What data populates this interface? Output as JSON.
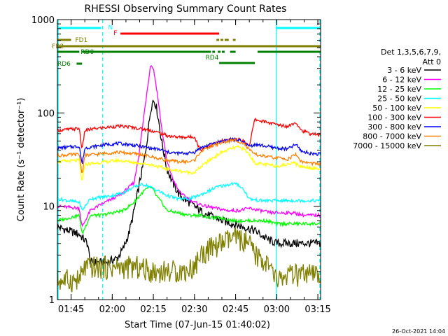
{
  "chart_data": {
    "type": "line",
    "title": "RHESSI Observing Summary Count Rates",
    "xlabel": "Start Time (07-Jun-15 01:40:02)",
    "ylabel": "Count Rate (s⁻¹ detector⁻¹)",
    "y_scale": "log",
    "ylim": [
      1,
      1000
    ],
    "xlim_minutes": [
      0,
      96
    ],
    "x_ticks": [
      {
        "minute": 5,
        "label": "01:45"
      },
      {
        "minute": 20,
        "label": "02:00"
      },
      {
        "minute": 35,
        "label": "02:15"
      },
      {
        "minute": 50,
        "label": "02:30"
      },
      {
        "minute": 65,
        "label": "02:45"
      },
      {
        "minute": 80,
        "label": "03:00"
      },
      {
        "minute": 95,
        "label": "03:15"
      }
    ],
    "y_ticks": [
      {
        "value": 1,
        "label": "1"
      },
      {
        "value": 10,
        "label": "10"
      },
      {
        "value": 100,
        "label": "100"
      },
      {
        "value": 1000,
        "label": "1000"
      }
    ],
    "legend_header": [
      "Det 1,3,5,6,7,9,",
      "Att 0"
    ],
    "legend_position": "right",
    "footer_timestamp": "26-Oct-2021 14:04",
    "series": [
      {
        "name": "3 - 6 keV",
        "color": "#000000",
        "points": [
          [
            0,
            6
          ],
          [
            8,
            5
          ],
          [
            11,
            4
          ],
          [
            12,
            2.5
          ],
          [
            18,
            2.5
          ],
          [
            22,
            2.8
          ],
          [
            24,
            3.5
          ],
          [
            26,
            5
          ],
          [
            28,
            9
          ],
          [
            30,
            18
          ],
          [
            32,
            35
          ],
          [
            33,
            60
          ],
          [
            34,
            110
          ],
          [
            35,
            140
          ],
          [
            36,
            120
          ],
          [
            37,
            80
          ],
          [
            38,
            50
          ],
          [
            39,
            35
          ],
          [
            40,
            25
          ],
          [
            42,
            18
          ],
          [
            44,
            14
          ],
          [
            46,
            12
          ],
          [
            48,
            11
          ],
          [
            50,
            10
          ],
          [
            52,
            9
          ],
          [
            55,
            8
          ],
          [
            58,
            7.5
          ],
          [
            60,
            7
          ],
          [
            64,
            6.5
          ],
          [
            68,
            6
          ],
          [
            72,
            5.5
          ],
          [
            76,
            4.5
          ],
          [
            80,
            4
          ],
          [
            85,
            4
          ],
          [
            90,
            4
          ],
          [
            96,
            4
          ]
        ]
      },
      {
        "name": "6 - 12 keV",
        "color": "#ff00ff",
        "points": [
          [
            0,
            10
          ],
          [
            8,
            9.5
          ],
          [
            9,
            6
          ],
          [
            12,
            9
          ],
          [
            16,
            10.5
          ],
          [
            20,
            12
          ],
          [
            24,
            14
          ],
          [
            28,
            18
          ],
          [
            30,
            40
          ],
          [
            32,
            120
          ],
          [
            33,
            200
          ],
          [
            34,
            330
          ],
          [
            35,
            300
          ],
          [
            36,
            200
          ],
          [
            37,
            120
          ],
          [
            38,
            70
          ],
          [
            39,
            45
          ],
          [
            40,
            30
          ],
          [
            42,
            20
          ],
          [
            44,
            15
          ],
          [
            46,
            13
          ],
          [
            48,
            12
          ],
          [
            50,
            11
          ],
          [
            54,
            10
          ],
          [
            58,
            9.5
          ],
          [
            62,
            9
          ],
          [
            66,
            9
          ],
          [
            70,
            9.5
          ],
          [
            74,
            9
          ],
          [
            78,
            8.5
          ],
          [
            82,
            8.5
          ],
          [
            86,
            8.5
          ],
          [
            90,
            8
          ],
          [
            96,
            8
          ]
        ]
      },
      {
        "name": "12 - 25 keV",
        "color": "#00ff00",
        "points": [
          [
            0,
            7
          ],
          [
            8,
            8
          ],
          [
            9,
            5
          ],
          [
            12,
            8
          ],
          [
            16,
            8
          ],
          [
            20,
            8.5
          ],
          [
            24,
            9
          ],
          [
            28,
            11
          ],
          [
            30,
            13
          ],
          [
            32,
            15
          ],
          [
            34,
            16
          ],
          [
            35,
            15
          ],
          [
            36,
            13
          ],
          [
            38,
            11
          ],
          [
            40,
            9
          ],
          [
            44,
            8.5
          ],
          [
            48,
            8
          ],
          [
            52,
            8
          ],
          [
            56,
            7.5
          ],
          [
            60,
            7.5
          ],
          [
            64,
            7
          ],
          [
            68,
            7
          ],
          [
            72,
            7
          ],
          [
            76,
            7
          ],
          [
            80,
            6.5
          ],
          [
            86,
            6.5
          ],
          [
            90,
            6.5
          ],
          [
            96,
            6.5
          ]
        ]
      },
      {
        "name": "25 - 50 keV",
        "color": "#00ffff",
        "points": [
          [
            0,
            12
          ],
          [
            8,
            11
          ],
          [
            9,
            9
          ],
          [
            12,
            12
          ],
          [
            16,
            12.5
          ],
          [
            20,
            13
          ],
          [
            24,
            14
          ],
          [
            28,
            16
          ],
          [
            30,
            17
          ],
          [
            32,
            17
          ],
          [
            34,
            16
          ],
          [
            36,
            15
          ],
          [
            38,
            14
          ],
          [
            40,
            13
          ],
          [
            44,
            12
          ],
          [
            48,
            12
          ],
          [
            50,
            12.5
          ],
          [
            54,
            14
          ],
          [
            58,
            16
          ],
          [
            62,
            17
          ],
          [
            64,
            17.5
          ],
          [
            66,
            17
          ],
          [
            68,
            15
          ],
          [
            70,
            12
          ],
          [
            74,
            11.5
          ],
          [
            78,
            11.5
          ],
          [
            82,
            11.5
          ],
          [
            86,
            11.5
          ],
          [
            90,
            11.5
          ],
          [
            96,
            11.5
          ]
        ]
      },
      {
        "name": "50 - 100 keV",
        "color": "#ffff00",
        "points": [
          [
            0,
            30
          ],
          [
            8,
            31
          ],
          [
            9,
            18
          ],
          [
            10,
            28
          ],
          [
            14,
            29
          ],
          [
            18,
            30
          ],
          [
            22,
            31
          ],
          [
            26,
            30
          ],
          [
            30,
            29
          ],
          [
            34,
            28
          ],
          [
            38,
            26
          ],
          [
            40,
            25
          ],
          [
            44,
            24
          ],
          [
            48,
            23
          ],
          [
            50,
            23
          ],
          [
            52,
            26
          ],
          [
            56,
            32
          ],
          [
            60,
            38
          ],
          [
            64,
            42
          ],
          [
            66,
            43
          ],
          [
            68,
            41
          ],
          [
            70,
            36
          ],
          [
            72,
            29
          ],
          [
            76,
            28
          ],
          [
            80,
            27
          ],
          [
            84,
            28
          ],
          [
            86,
            30
          ],
          [
            88,
            27
          ],
          [
            92,
            26
          ],
          [
            96,
            25
          ]
        ]
      },
      {
        "name": "100 - 300 keV",
        "color": "#ff0000",
        "points": [
          [
            0,
            65
          ],
          [
            8,
            68
          ],
          [
            9,
            40
          ],
          [
            10,
            65
          ],
          [
            14,
            68
          ],
          [
            18,
            70
          ],
          [
            22,
            72
          ],
          [
            26,
            71
          ],
          [
            30,
            68
          ],
          [
            34,
            65
          ],
          [
            38,
            60
          ],
          [
            40,
            57
          ],
          [
            44,
            55
          ],
          [
            48,
            55
          ],
          [
            50,
            56
          ],
          [
            52,
            40
          ],
          [
            56,
            45
          ],
          [
            60,
            50
          ],
          [
            64,
            52
          ],
          [
            66,
            52
          ],
          [
            68,
            50
          ],
          [
            70,
            45
          ],
          [
            72,
            85
          ],
          [
            76,
            80
          ],
          [
            80,
            75
          ],
          [
            84,
            72
          ],
          [
            87,
            80
          ],
          [
            89,
            65
          ],
          [
            92,
            60
          ],
          [
            96,
            58
          ]
        ]
      },
      {
        "name": "300 - 800 keV",
        "color": "#0000ff",
        "points": [
          [
            0,
            42
          ],
          [
            8,
            44
          ],
          [
            9,
            28
          ],
          [
            10,
            42
          ],
          [
            14,
            44
          ],
          [
            18,
            46
          ],
          [
            22,
            47
          ],
          [
            26,
            46
          ],
          [
            30,
            44
          ],
          [
            34,
            42
          ],
          [
            38,
            40
          ],
          [
            40,
            38
          ],
          [
            44,
            37
          ],
          [
            48,
            37
          ],
          [
            50,
            38
          ],
          [
            52,
            42
          ],
          [
            56,
            46
          ],
          [
            60,
            50
          ],
          [
            64,
            52
          ],
          [
            66,
            51
          ],
          [
            68,
            48
          ],
          [
            70,
            44
          ],
          [
            72,
            46
          ],
          [
            76,
            44
          ],
          [
            80,
            42
          ],
          [
            84,
            41
          ],
          [
            87,
            46
          ],
          [
            89,
            39
          ],
          [
            92,
            37
          ],
          [
            96,
            36
          ]
        ]
      },
      {
        "name": "800 - 7000 keV",
        "color": "#ff8000",
        "points": [
          [
            0,
            35
          ],
          [
            8,
            36
          ],
          [
            9,
            22
          ],
          [
            10,
            35
          ],
          [
            14,
            36
          ],
          [
            18,
            37
          ],
          [
            22,
            38
          ],
          [
            26,
            37
          ],
          [
            30,
            36
          ],
          [
            34,
            34
          ],
          [
            38,
            32
          ],
          [
            40,
            31
          ],
          [
            44,
            30
          ],
          [
            48,
            30
          ],
          [
            50,
            31
          ],
          [
            52,
            38
          ],
          [
            56,
            44
          ],
          [
            60,
            48
          ],
          [
            64,
            51
          ],
          [
            66,
            50
          ],
          [
            68,
            47
          ],
          [
            70,
            40
          ],
          [
            72,
            36
          ],
          [
            76,
            34
          ],
          [
            80,
            33
          ],
          [
            84,
            32
          ],
          [
            87,
            36
          ],
          [
            89,
            30
          ],
          [
            92,
            29
          ],
          [
            96,
            28
          ]
        ]
      },
      {
        "name": "7000 - 15000 keV",
        "color": "#808000",
        "points": [
          [
            0,
            1.6
          ],
          [
            8,
            1.6
          ],
          [
            10,
            2.2
          ],
          [
            14,
            2.2
          ],
          [
            18,
            2.2
          ],
          [
            22,
            2.2
          ],
          [
            26,
            2.2
          ],
          [
            30,
            2.2
          ],
          [
            34,
            2.0
          ],
          [
            38,
            2.0
          ],
          [
            42,
            2.0
          ],
          [
            46,
            2.0
          ],
          [
            50,
            2.2
          ],
          [
            52,
            3.0
          ],
          [
            56,
            3.5
          ],
          [
            60,
            4.0
          ],
          [
            64,
            4.5
          ],
          [
            66,
            4.5
          ],
          [
            68,
            4.2
          ],
          [
            70,
            3.8
          ],
          [
            72,
            3.0
          ],
          [
            76,
            2.5
          ],
          [
            80,
            1.6
          ],
          [
            84,
            1.8
          ],
          [
            88,
            1.8
          ],
          [
            92,
            1.8
          ],
          [
            96,
            1.8
          ]
        ]
      }
    ],
    "status_bars": [
      {
        "label": "N",
        "color": "#00ffff",
        "spans": [
          [
            0,
            16
          ],
          [
            80,
            96
          ]
        ],
        "label_at": 18.5
      },
      {
        "label": "F",
        "color": "#ff0000",
        "spans": [
          [
            23,
            59
          ]
        ],
        "label_at": 20.5
      },
      {
        "label": "FD1",
        "color": "#808000",
        "spans": [
          [
            0,
            5
          ],
          [
            58,
            59
          ],
          [
            59.5,
            60.5
          ],
          [
            61,
            62.5
          ],
          [
            64,
            65
          ]
        ],
        "label_at": 6.5
      },
      {
        "label": "FB2",
        "color": "#808000",
        "spans": [
          [
            0,
            96
          ]
        ],
        "label_at": -2
      },
      {
        "label": "RD0",
        "color": "#008000",
        "spans": [
          [
            0,
            8
          ],
          [
            9,
            56
          ],
          [
            56.5,
            57.5
          ],
          [
            58.5,
            59.5
          ],
          [
            60,
            61
          ],
          [
            63,
            65
          ],
          [
            73,
            96
          ]
        ],
        "label_at": 8.5
      },
      {
        "label": "RD4",
        "color": "#008000",
        "spans": [
          [
            59,
            72
          ]
        ],
        "label_at": 54
      },
      {
        "label": "RD6",
        "color": "#008000",
        "spans": [
          [
            7,
            9
          ]
        ],
        "label_at": 0
      }
    ],
    "vertical_markers": [
      {
        "minute": 0.3,
        "color": "#00ffff",
        "style": "solid"
      },
      {
        "minute": 16.5,
        "color": "#00ffff",
        "style": "dashed"
      },
      {
        "minute": 79.8,
        "color": "#00ffff",
        "style": "solid"
      },
      {
        "minute": 95.7,
        "color": "#00ffff",
        "style": "dashed"
      }
    ]
  }
}
